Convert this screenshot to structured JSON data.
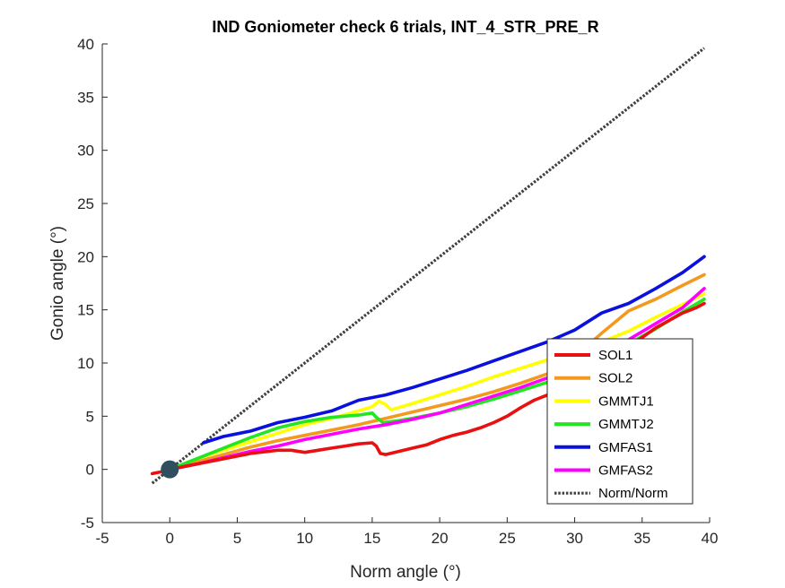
{
  "chart_data": {
    "type": "line",
    "title": "IND Goniometer check 6 trials, INT_4_STR_PRE_R",
    "xlabel": "Norm angle (°)",
    "ylabel": "Gonio angle (°)",
    "xlim": [
      -5,
      40
    ],
    "ylim": [
      -5,
      40
    ],
    "xticks": [
      "-5",
      "0",
      "5",
      "10",
      "15",
      "20",
      "25",
      "30",
      "35",
      "40"
    ],
    "yticks": [
      "-5",
      "0",
      "5",
      "10",
      "15",
      "20",
      "25",
      "30",
      "35",
      "40"
    ],
    "grid": false,
    "legend_position": "lower-right",
    "marker": {
      "x": 0,
      "y": 0,
      "color": "#2F4F5F"
    },
    "series": [
      {
        "name": "SOL1",
        "color": "#E81010",
        "style": "solid",
        "x": [
          -1.3,
          -0.5,
          0,
          2,
          4,
          6,
          8,
          9,
          10,
          11,
          12,
          13,
          14,
          15,
          15.3,
          15.6,
          16,
          17,
          18,
          19,
          20,
          21,
          22,
          23,
          24,
          25,
          26,
          27,
          28,
          29,
          30,
          31,
          32,
          33,
          34,
          35,
          36,
          37,
          38,
          39,
          39.6
        ],
        "y": [
          -0.4,
          -0.2,
          0,
          0.5,
          1.0,
          1.5,
          1.8,
          1.8,
          1.6,
          1.8,
          2.0,
          2.2,
          2.4,
          2.5,
          2.2,
          1.5,
          1.4,
          1.7,
          2.0,
          2.3,
          2.8,
          3.2,
          3.5,
          3.9,
          4.4,
          5.0,
          5.8,
          6.5,
          7.0,
          7.5,
          8.2,
          9.0,
          9.8,
          10.6,
          11.5,
          12.4,
          13.3,
          14.0,
          14.7,
          15.2,
          15.6
        ]
      },
      {
        "name": "SOL2",
        "color": "#F39A1E",
        "style": "solid",
        "x": [
          0,
          2,
          4,
          6,
          8,
          10,
          12,
          14,
          16,
          18,
          20,
          22,
          24,
          26,
          28,
          30,
          32,
          34,
          36,
          38,
          39.6
        ],
        "y": [
          0,
          0.7,
          1.4,
          2.1,
          2.7,
          3.2,
          3.7,
          4.2,
          4.8,
          5.4,
          6.0,
          6.6,
          7.3,
          8.1,
          9.0,
          10.6,
          12.8,
          14.9,
          16.0,
          17.3,
          18.3
        ]
      },
      {
        "name": "GMMTJ1",
        "color": "#FFFF00",
        "style": "solid",
        "x": [
          0,
          2,
          4,
          6,
          8,
          10,
          12,
          14,
          15,
          15.5,
          16,
          16.4,
          18,
          20,
          22,
          24,
          26,
          28,
          30,
          32,
          34,
          36,
          38,
          39.6
        ],
        "y": [
          0,
          1.0,
          1.8,
          2.6,
          3.4,
          4.2,
          4.8,
          5.5,
          5.9,
          6.4,
          6.1,
          5.6,
          6.2,
          7.0,
          7.8,
          8.7,
          9.5,
          10.3,
          11.0,
          12.0,
          13.0,
          14.3,
          15.5,
          16.5
        ]
      },
      {
        "name": "GMMTJ2",
        "color": "#22E622",
        "style": "solid",
        "x": [
          0,
          2,
          4,
          6,
          8,
          10,
          12,
          14,
          15,
          15.3,
          15.8,
          17,
          18,
          20,
          22,
          24,
          26,
          28,
          30,
          32,
          34,
          36,
          38,
          39.6
        ],
        "y": [
          0,
          1.0,
          2.0,
          3.0,
          3.9,
          4.5,
          4.9,
          5.1,
          5.3,
          4.9,
          4.4,
          4.6,
          4.8,
          5.3,
          5.9,
          6.6,
          7.4,
          8.2,
          9.2,
          10.5,
          11.8,
          13.2,
          14.8,
          16.0
        ]
      },
      {
        "name": "GMFAS1",
        "color": "#0A10DE",
        "style": "solid",
        "x": [
          2.5,
          4,
          6,
          8,
          10,
          12,
          14,
          16,
          18,
          20,
          22,
          24,
          26,
          28,
          30,
          32,
          34,
          36,
          38,
          39.6
        ],
        "y": [
          2.5,
          3.1,
          3.6,
          4.4,
          4.9,
          5.5,
          6.5,
          7.0,
          7.7,
          8.5,
          9.3,
          10.2,
          11.1,
          12.0,
          13.1,
          14.7,
          15.6,
          17.0,
          18.5,
          20.0
        ]
      },
      {
        "name": "GMFAS2",
        "color": "#FF00FF",
        "style": "solid",
        "x": [
          0,
          2,
          4,
          6,
          8,
          10,
          12,
          14,
          16,
          18,
          20,
          22,
          24,
          26,
          28,
          30,
          32,
          34,
          36,
          38,
          39.6
        ],
        "y": [
          0,
          0.5,
          1.1,
          1.7,
          2.2,
          2.8,
          3.3,
          3.8,
          4.2,
          4.7,
          5.3,
          6.1,
          6.9,
          7.7,
          8.6,
          9.6,
          10.9,
          12.2,
          13.7,
          15.2,
          17.0
        ]
      },
      {
        "name": "Norm/Norm",
        "color": "#404040",
        "style": "dotted",
        "x": [
          -1.3,
          39.6
        ],
        "y": [
          -1.3,
          39.6
        ]
      }
    ]
  }
}
